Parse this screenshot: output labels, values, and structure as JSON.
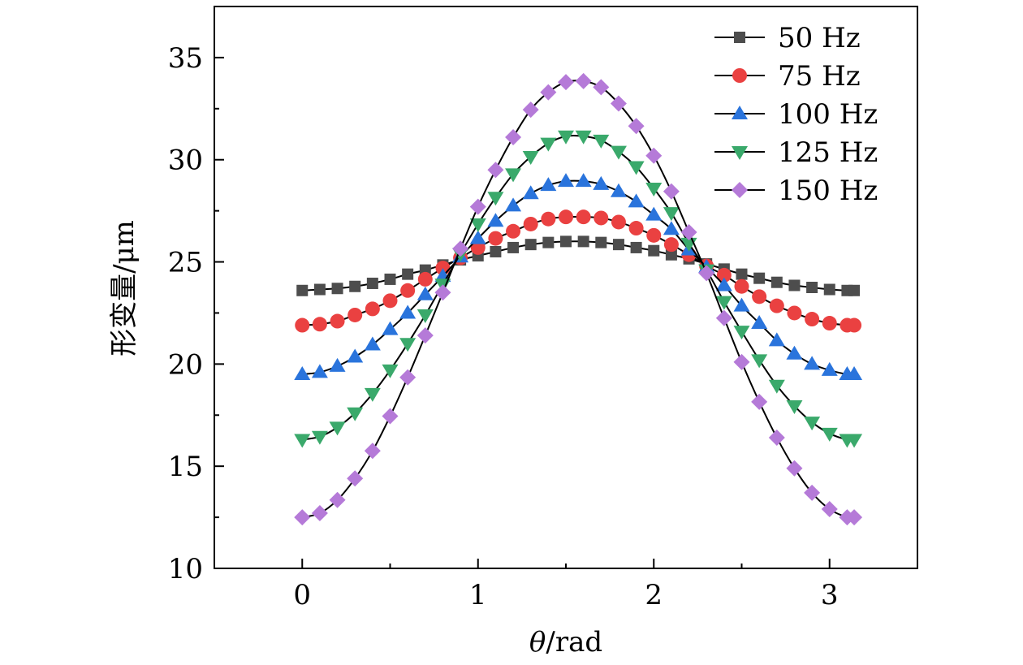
{
  "chart_data": {
    "type": "line",
    "title": "",
    "xlabel_symbol": "θ",
    "xlabel_unit": "/rad",
    "ylabel": "形变量/μm",
    "xlim": [
      -0.5,
      3.5
    ],
    "ylim": [
      10,
      37.5
    ],
    "xticks": [
      0,
      1,
      2,
      3
    ],
    "xtick_labels": [
      "0",
      "1",
      "2",
      "3"
    ],
    "yticks": [
      10,
      15,
      20,
      25,
      30,
      35
    ],
    "ytick_labels": [
      "10",
      "15",
      "20",
      "25",
      "30",
      "35"
    ],
    "grid": false,
    "legend_position": "top-right",
    "x": [
      0,
      0.1,
      0.2,
      0.3,
      0.4,
      0.5,
      0.6,
      0.7,
      0.8,
      0.9,
      1.0,
      1.1,
      1.2,
      1.3,
      1.4,
      1.5,
      1.6,
      1.7,
      1.8,
      1.9,
      2.0,
      2.1,
      2.2,
      2.3,
      2.4,
      2.5,
      2.6,
      2.7,
      2.8,
      2.9,
      3.0,
      3.1,
      3.14
    ],
    "series": [
      {
        "name": "50 Hz",
        "marker": "square",
        "color": "#4d4d4d",
        "values": [
          23.6,
          23.65,
          23.7,
          23.8,
          23.95,
          24.15,
          24.4,
          24.6,
          24.85,
          25.1,
          25.3,
          25.5,
          25.7,
          25.85,
          25.95,
          26.0,
          26.0,
          25.95,
          25.85,
          25.7,
          25.55,
          25.35,
          25.15,
          24.9,
          24.65,
          24.4,
          24.2,
          24.0,
          23.85,
          23.75,
          23.65,
          23.6,
          23.6
        ]
      },
      {
        "name": "75 Hz",
        "marker": "circle",
        "color": "#ea4141",
        "values": [
          21.9,
          21.95,
          22.1,
          22.4,
          22.7,
          23.1,
          23.6,
          24.15,
          24.7,
          25.2,
          25.7,
          26.15,
          26.5,
          26.85,
          27.1,
          27.2,
          27.2,
          27.15,
          26.95,
          26.65,
          26.3,
          25.85,
          25.35,
          24.8,
          24.35,
          23.8,
          23.3,
          22.85,
          22.5,
          22.2,
          22.0,
          21.9,
          21.9
        ]
      },
      {
        "name": "100 Hz",
        "marker": "triangle-up",
        "color": "#2a74dc",
        "values": [
          19.5,
          19.6,
          19.9,
          20.35,
          20.95,
          21.7,
          22.5,
          23.4,
          24.3,
          25.25,
          26.15,
          27.0,
          27.75,
          28.35,
          28.75,
          28.95,
          28.95,
          28.8,
          28.45,
          27.95,
          27.3,
          26.6,
          25.6,
          24.75,
          23.85,
          22.85,
          22.0,
          21.15,
          20.5,
          20.0,
          19.7,
          19.5,
          19.5
        ]
      },
      {
        "name": "125 Hz",
        "marker": "triangle-down",
        "color": "#3aa96b",
        "values": [
          16.3,
          16.45,
          16.9,
          17.6,
          18.55,
          19.7,
          21.0,
          22.4,
          23.9,
          25.4,
          26.85,
          28.15,
          29.3,
          30.15,
          30.8,
          31.15,
          31.15,
          30.95,
          30.4,
          29.65,
          28.6,
          27.4,
          25.9,
          24.6,
          23.05,
          21.6,
          20.2,
          18.95,
          17.95,
          17.15,
          16.6,
          16.3,
          16.3
        ]
      },
      {
        "name": "150 Hz",
        "marker": "diamond",
        "color": "#b57ad8",
        "values": [
          12.5,
          12.7,
          13.35,
          14.4,
          15.75,
          17.45,
          19.35,
          21.4,
          23.5,
          25.65,
          27.7,
          29.5,
          31.1,
          32.45,
          33.3,
          33.8,
          33.85,
          33.55,
          32.75,
          31.65,
          30.2,
          28.45,
          26.45,
          24.45,
          22.25,
          20.1,
          18.15,
          16.4,
          14.9,
          13.7,
          12.9,
          12.5,
          12.5
        ]
      }
    ]
  }
}
